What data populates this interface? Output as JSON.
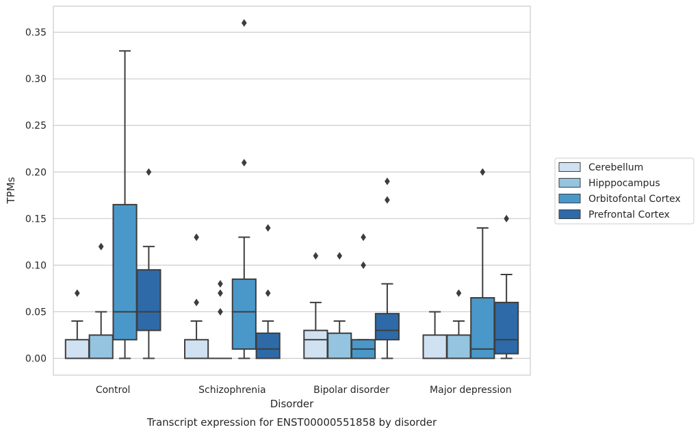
{
  "caption": "Transcript expression for ENST00000551858 by disorder",
  "chart_data": {
    "type": "box",
    "title": "",
    "xlabel": "Disorder",
    "ylabel": "TPMs",
    "ylim": [
      -0.018,
      0.378
    ],
    "yticks": [
      0.0,
      0.05,
      0.1,
      0.15,
      0.2,
      0.25,
      0.3,
      0.35
    ],
    "ytick_labels": [
      "0.00",
      "0.05",
      "0.10",
      "0.15",
      "0.20",
      "0.25",
      "0.30",
      "0.35"
    ],
    "grid": "horizontal",
    "legend_position": "right",
    "categories": [
      "Control",
      "Schizophrenia",
      "Bipolar disorder",
      "Major depression"
    ],
    "series": [
      {
        "name": "Cerebellum",
        "color": "#d0e1f2",
        "boxes": [
          {
            "whisker_low": 0.0,
            "q1": 0.0,
            "median": 0.0,
            "q3": 0.02,
            "whisker_high": 0.04,
            "outliers": [
              0.07
            ]
          },
          {
            "whisker_low": 0.0,
            "q1": 0.0,
            "median": 0.0,
            "q3": 0.02,
            "whisker_high": 0.04,
            "outliers": [
              0.06,
              0.13
            ]
          },
          {
            "whisker_low": 0.0,
            "q1": 0.0,
            "median": 0.02,
            "q3": 0.03,
            "whisker_high": 0.06,
            "outliers": [
              0.11
            ]
          },
          {
            "whisker_low": 0.0,
            "q1": 0.0,
            "median": 0.0,
            "q3": 0.025,
            "whisker_high": 0.05,
            "outliers": []
          }
        ]
      },
      {
        "name": "Hipppocampus",
        "color": "#94c4df",
        "boxes": [
          {
            "whisker_low": 0.0,
            "q1": 0.0,
            "median": 0.0,
            "q3": 0.025,
            "whisker_high": 0.05,
            "outliers": [
              0.12
            ]
          },
          {
            "whisker_low": 0.0,
            "q1": 0.0,
            "median": 0.0,
            "q3": 0.0,
            "whisker_high": 0.0,
            "outliers": [
              0.05,
              0.07,
              0.08
            ]
          },
          {
            "whisker_low": 0.0,
            "q1": 0.0,
            "median": 0.0,
            "q3": 0.027,
            "whisker_high": 0.04,
            "outliers": [
              0.11
            ]
          },
          {
            "whisker_low": 0.0,
            "q1": 0.0,
            "median": 0.0,
            "q3": 0.025,
            "whisker_high": 0.04,
            "outliers": [
              0.07
            ]
          }
        ]
      },
      {
        "name": "Orbitofontal Cortex",
        "color": "#4a98c9",
        "boxes": [
          {
            "whisker_low": 0.0,
            "q1": 0.02,
            "median": 0.05,
            "q3": 0.165,
            "whisker_high": 0.33,
            "outliers": []
          },
          {
            "whisker_low": 0.0,
            "q1": 0.01,
            "median": 0.05,
            "q3": 0.085,
            "whisker_high": 0.13,
            "outliers": [
              0.21,
              0.36
            ]
          },
          {
            "whisker_low": 0.0,
            "q1": 0.0,
            "median": 0.01,
            "q3": 0.02,
            "whisker_high": 0.02,
            "outliers": [
              0.1,
              0.13
            ]
          },
          {
            "whisker_low": 0.0,
            "q1": 0.0,
            "median": 0.01,
            "q3": 0.065,
            "whisker_high": 0.14,
            "outliers": [
              0.2
            ]
          }
        ]
      },
      {
        "name": "Prefrontal Cortex",
        "color": "#2e6aa8",
        "boxes": [
          {
            "whisker_low": 0.0,
            "q1": 0.03,
            "median": 0.05,
            "q3": 0.095,
            "whisker_high": 0.12,
            "outliers": [
              0.2
            ]
          },
          {
            "whisker_low": 0.0,
            "q1": 0.0,
            "median": 0.01,
            "q3": 0.027,
            "whisker_high": 0.04,
            "outliers": [
              0.07,
              0.14
            ]
          },
          {
            "whisker_low": 0.0,
            "q1": 0.02,
            "median": 0.03,
            "q3": 0.048,
            "whisker_high": 0.08,
            "outliers": [
              0.17,
              0.19
            ]
          },
          {
            "whisker_low": 0.0,
            "q1": 0.005,
            "median": 0.02,
            "q3": 0.06,
            "whisker_high": 0.09,
            "outliers": [
              0.15
            ]
          }
        ]
      }
    ]
  }
}
